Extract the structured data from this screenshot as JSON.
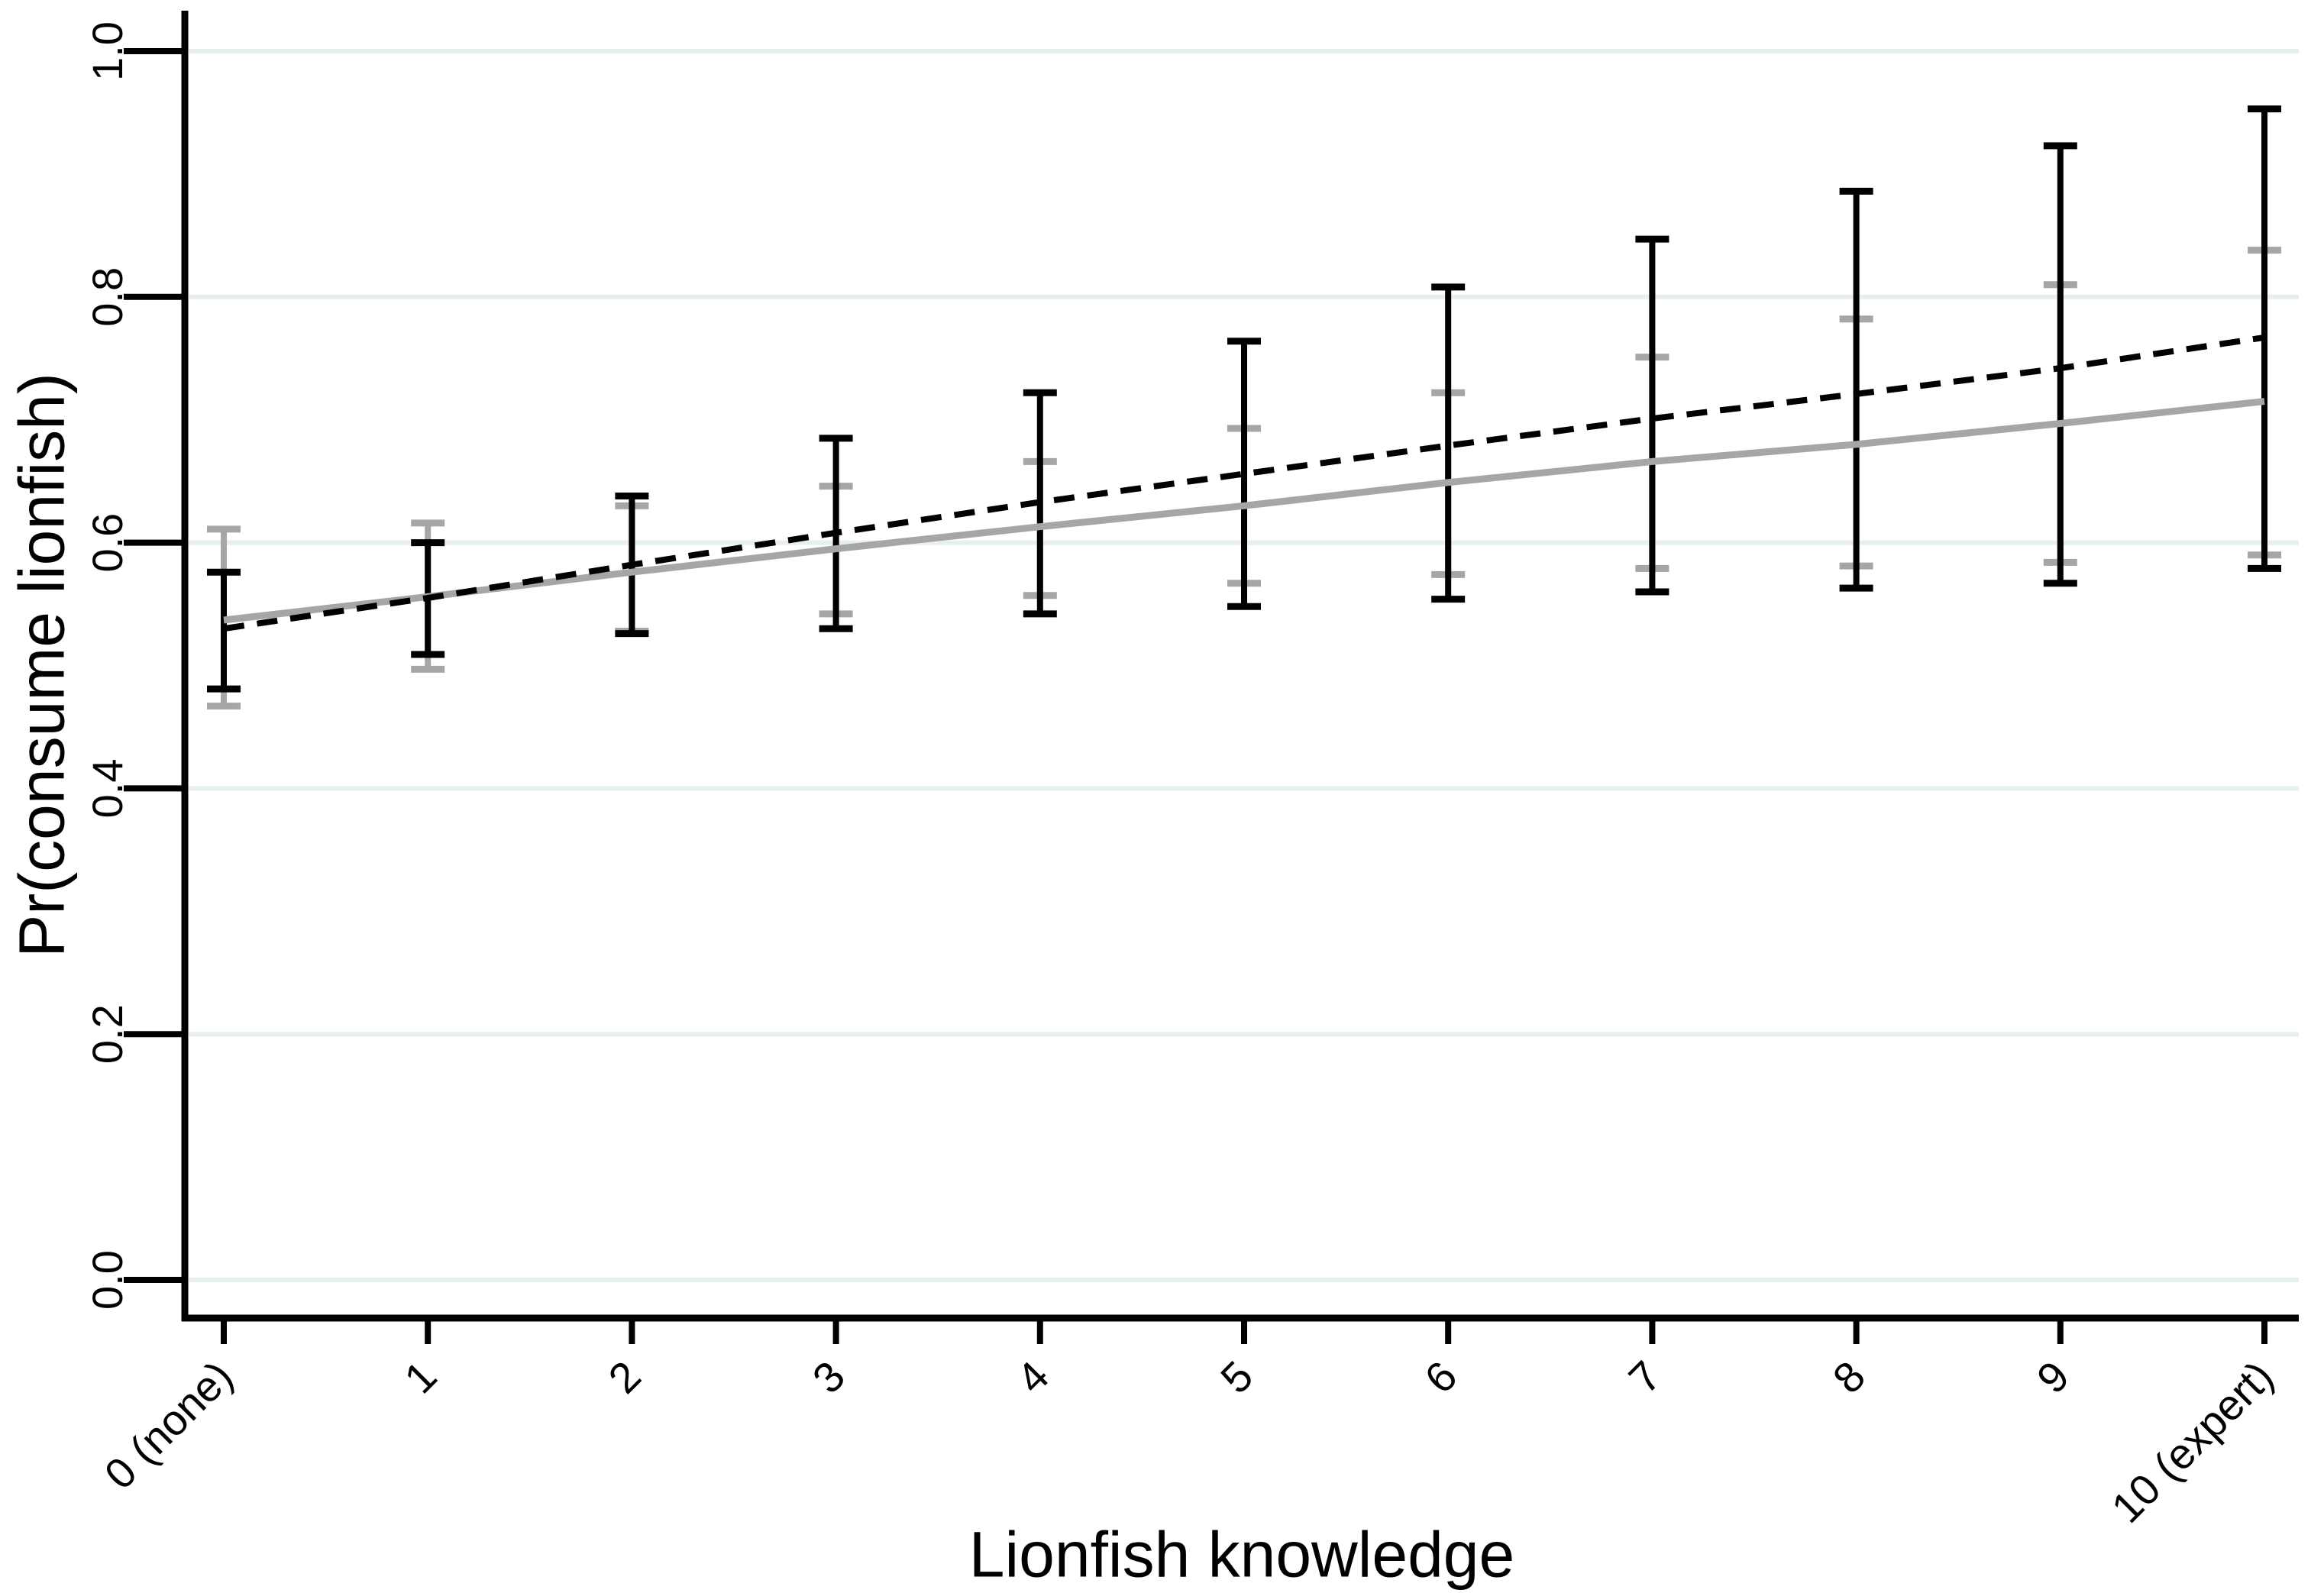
{
  "chart_data": {
    "type": "line",
    "title": "",
    "xlabel": "Lionfish knowledge",
    "ylabel": "Pr(consume lionfish)",
    "x": [
      0,
      1,
      2,
      3,
      4,
      5,
      6,
      7,
      8,
      9,
      10
    ],
    "x_tick_labels": [
      "0 (none)",
      "1",
      "2",
      "3",
      "4",
      "5",
      "6",
      "7",
      "8",
      "9",
      "10 (expert)"
    ],
    "y_ticks": [
      0.0,
      0.2,
      0.4,
      0.6,
      0.8,
      1.0
    ],
    "y_tick_labels": [
      "0.0",
      "0.2",
      "0.4",
      "0.6",
      "0.8",
      "1.0"
    ],
    "ylim": [
      0.0,
      1.0
    ],
    "xlim": [
      0,
      10
    ],
    "grid": "horizontal",
    "legend_position": "none",
    "series": [
      {
        "name": "dashed-black-line",
        "line_style": "dashed",
        "color": "#000000",
        "values": [
          0.53,
          0.555,
          0.582,
          0.608,
          0.633,
          0.656,
          0.679,
          0.701,
          0.721,
          0.742,
          0.767
        ],
        "ci_lower": [
          0.481,
          0.509,
          0.526,
          0.53,
          0.542,
          0.548,
          0.554,
          0.56,
          0.563,
          0.567,
          0.579
        ],
        "ci_upper": [
          0.576,
          0.6,
          0.638,
          0.685,
          0.722,
          0.764,
          0.808,
          0.847,
          0.886,
          0.923,
          0.953
        ]
      },
      {
        "name": "solid-gray-line",
        "line_style": "solid",
        "color": "#a6a6a6",
        "values": [
          0.537,
          0.556,
          0.576,
          0.595,
          0.613,
          0.63,
          0.649,
          0.666,
          0.68,
          0.697,
          0.715
        ],
        "ci_lower": [
          0.467,
          0.497,
          0.528,
          0.542,
          0.557,
          0.567,
          0.574,
          0.579,
          0.581,
          0.584,
          0.59
        ],
        "ci_upper": [
          0.611,
          0.616,
          0.63,
          0.646,
          0.666,
          0.693,
          0.722,
          0.751,
          0.782,
          0.81,
          0.838
        ]
      }
    ],
    "colors": {
      "gridline": "#e8eff1",
      "axis": "#000000",
      "background": "#ffffff",
      "series_black": "#000000",
      "series_gray": "#a6a6a6"
    }
  }
}
